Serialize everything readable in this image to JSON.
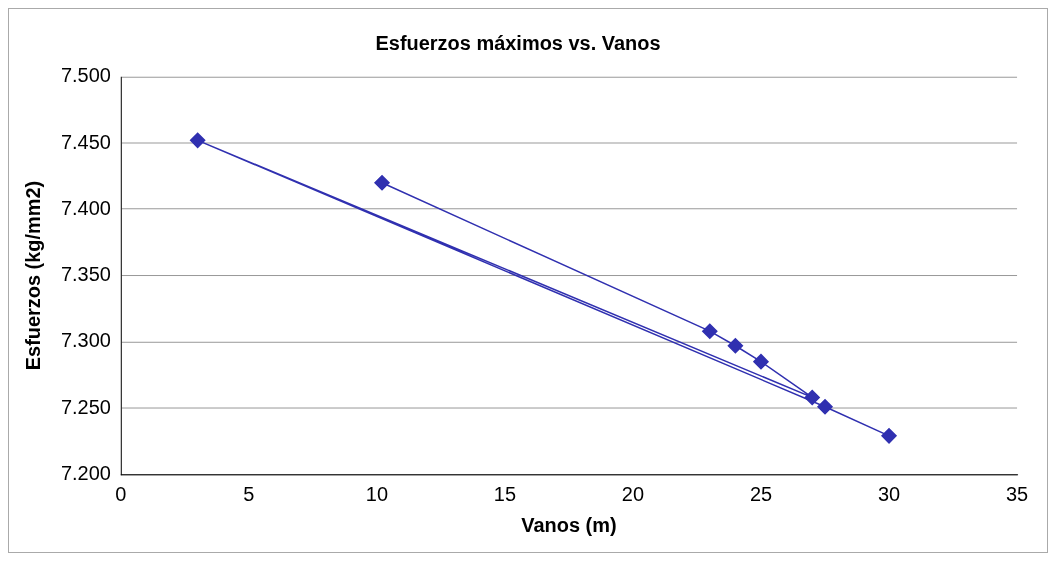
{
  "chart_data": {
    "type": "line",
    "title": "Esfuerzos máximos vs. Vanos",
    "xlabel": "Vanos (m)",
    "ylabel": "Esfuerzos (kg/mm2)",
    "series": [
      {
        "color": "#3030b0",
        "x": [
          10.2,
          23,
          24,
          25,
          27,
          3,
          27.5,
          30
        ],
        "values": [
          7.42,
          7.308,
          7.297,
          7.285,
          7.258,
          7.452,
          7.251,
          7.229
        ]
      }
    ],
    "xlim": [
      0,
      35
    ],
    "xticks": [
      0,
      5,
      10,
      15,
      20,
      25,
      30,
      35
    ],
    "ylim": [
      7.2,
      7.5
    ],
    "yticks": [
      {
        "value": 7.2,
        "label": "7.200"
      },
      {
        "value": 7.25,
        "label": "7.250"
      },
      {
        "value": 7.3,
        "label": "7.300"
      },
      {
        "value": 7.35,
        "label": "7.350"
      },
      {
        "value": 7.4,
        "label": "7.400"
      },
      {
        "value": 7.45,
        "label": "7.450"
      },
      {
        "value": 7.5,
        "label": "7.500"
      }
    ],
    "grid": "y",
    "legend": false,
    "marker": "diamond",
    "line_style": "solid"
  }
}
